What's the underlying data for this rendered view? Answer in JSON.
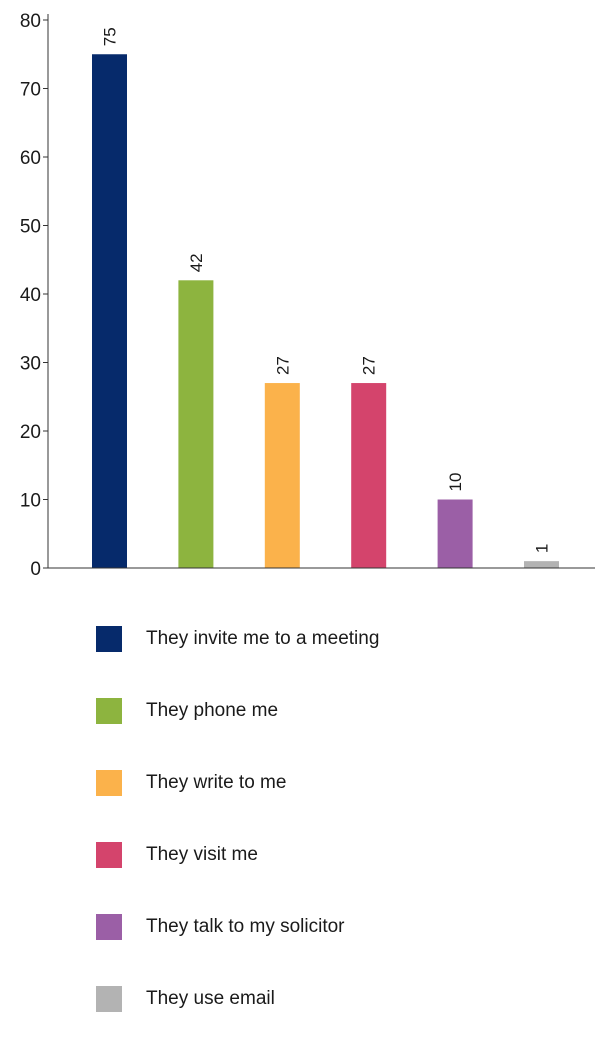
{
  "chart_data": {
    "type": "bar",
    "title": "",
    "xlabel": "",
    "ylabel": "",
    "ylim": [
      0,
      80
    ],
    "yticks": [
      0,
      10,
      20,
      30,
      40,
      50,
      60,
      70,
      80
    ],
    "grid": false,
    "legend_position": "bottom",
    "categories": [
      "They invite me to a meeting",
      "They phone me",
      "They write to me",
      "They visit me",
      "They talk to my solicitor",
      "They use email"
    ],
    "values": [
      75,
      42,
      27,
      27,
      10,
      1
    ],
    "colors": [
      "#062a6b",
      "#8db43f",
      "#fbb24b",
      "#d4446c",
      "#9b5fa6",
      "#b3b3b3"
    ],
    "data_labels": [
      "75",
      "42",
      "27",
      "27",
      "10",
      "1"
    ]
  }
}
